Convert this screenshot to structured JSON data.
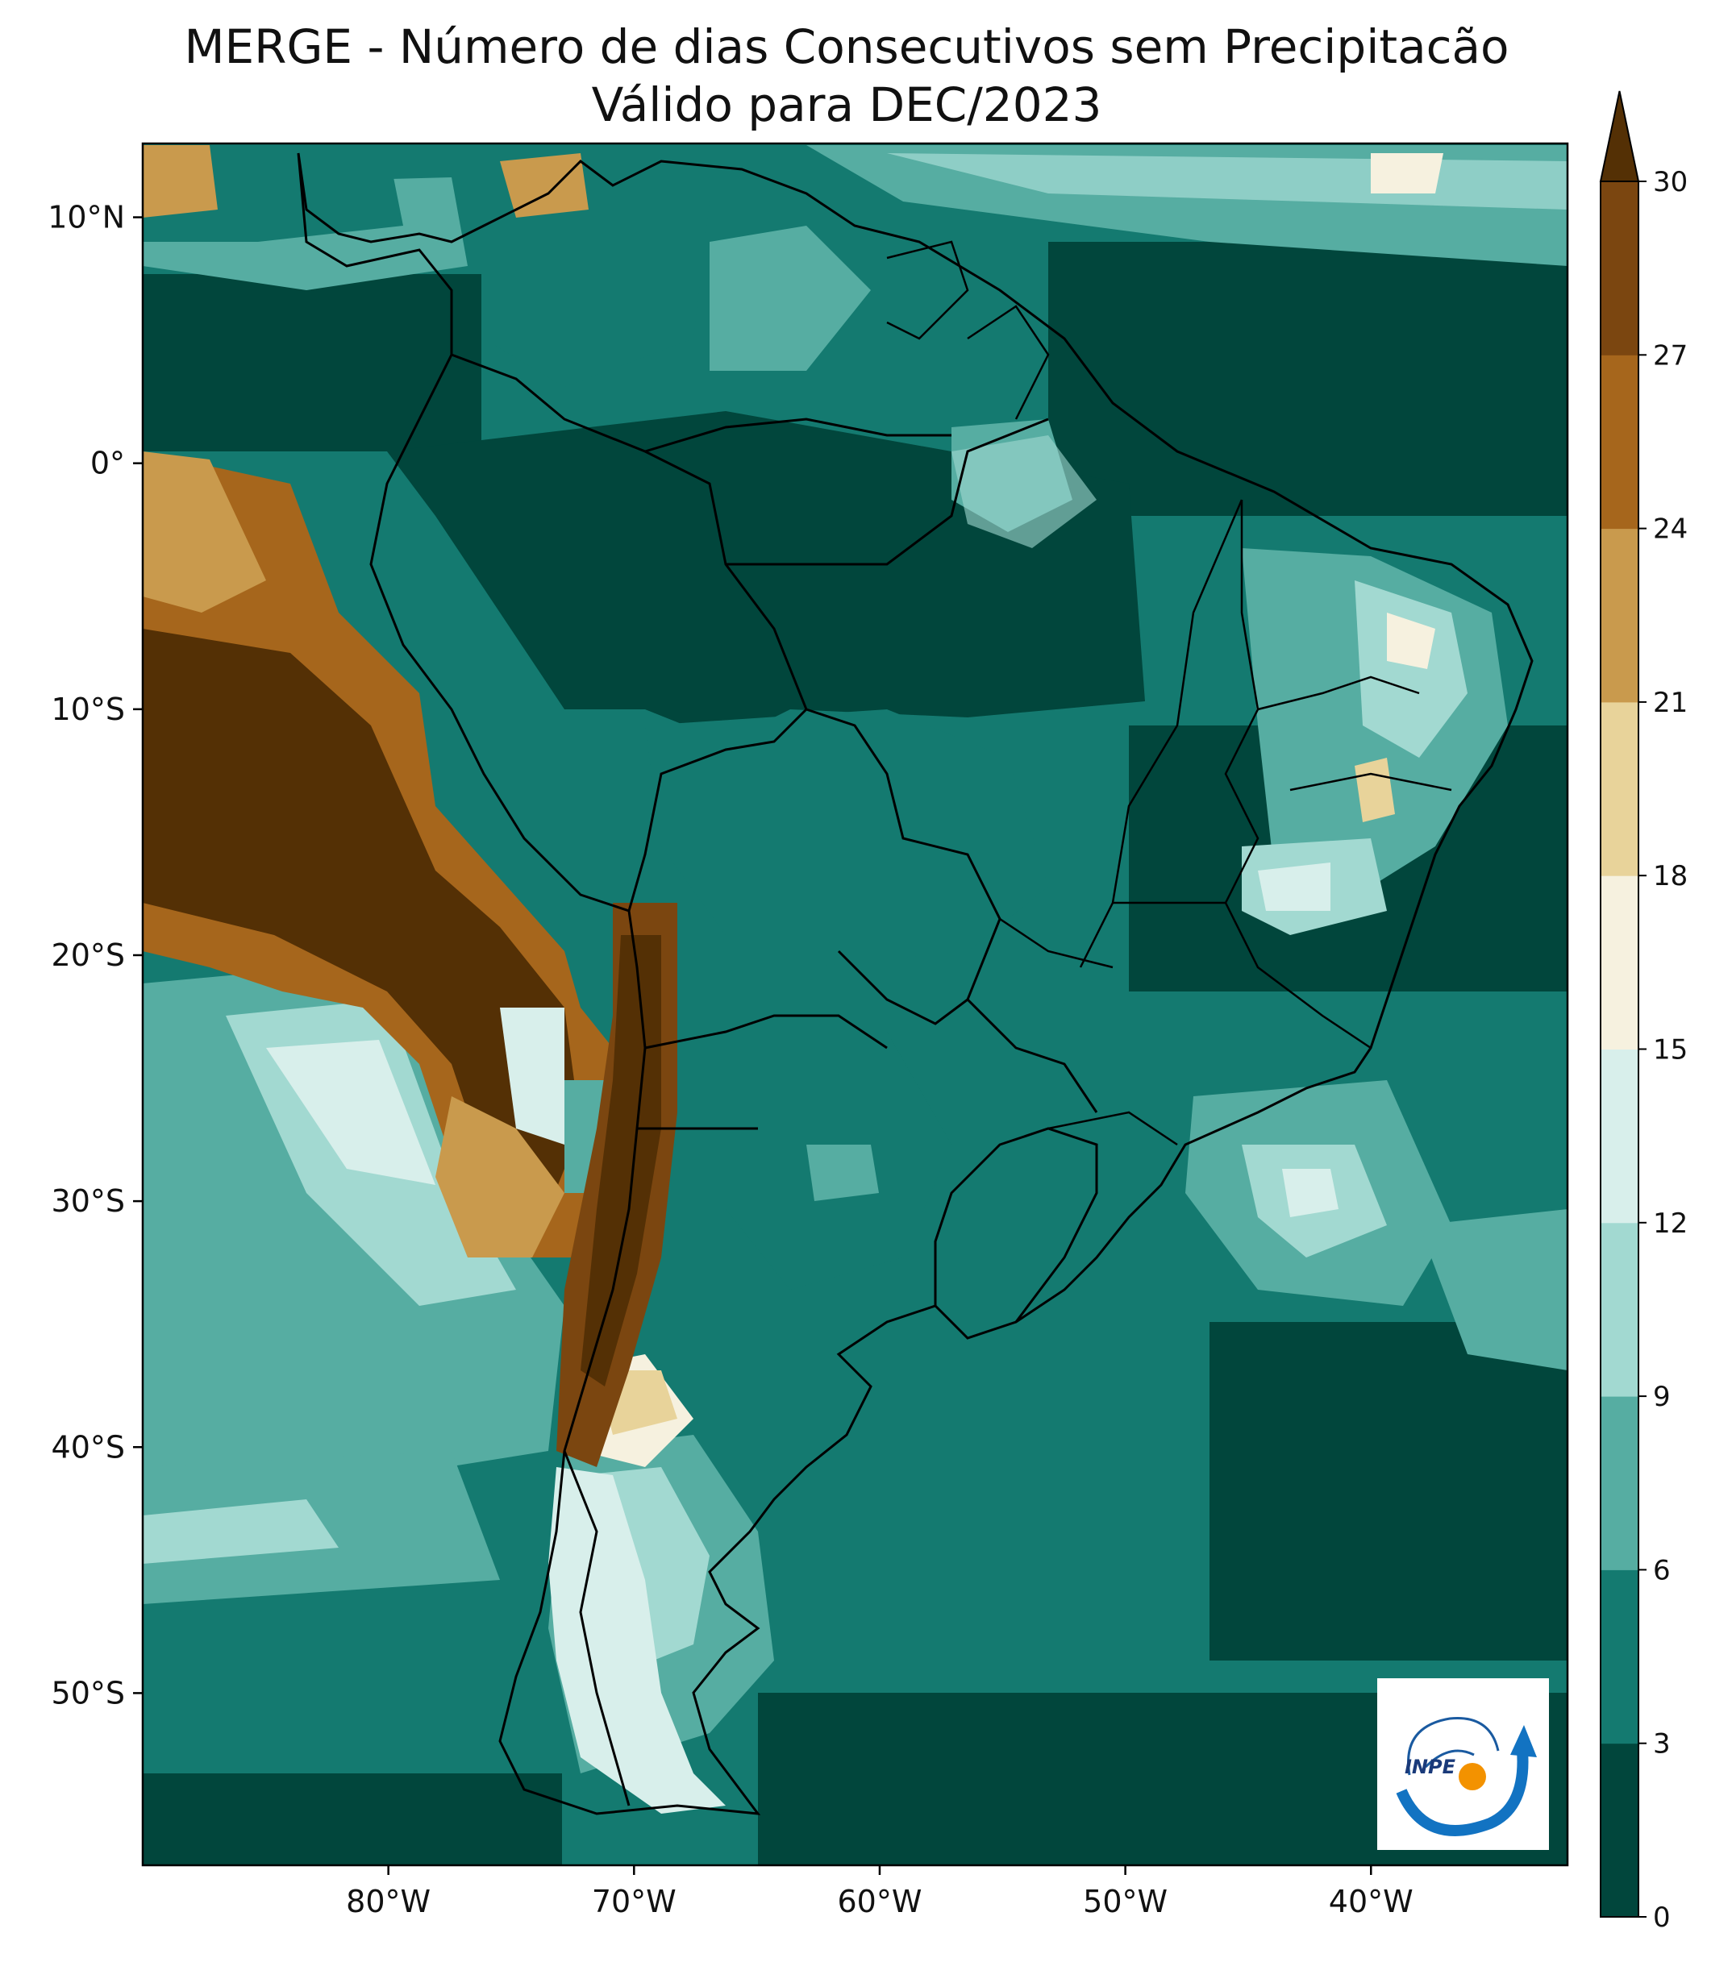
{
  "title": {
    "line1": "MERGE - Número de dias Consecutivos sem Precipitacão",
    "line2": "Válido para DEC/2023"
  },
  "map": {
    "lon_range": [
      -90,
      -32
    ],
    "lat_range": [
      -57,
      13
    ],
    "lon_ticks": [
      {
        "value": -80,
        "label": "80°W"
      },
      {
        "value": -70,
        "label": "70°W"
      },
      {
        "value": -60,
        "label": "60°W"
      },
      {
        "value": -50,
        "label": "50°W"
      },
      {
        "value": -40,
        "label": "40°W"
      }
    ],
    "lat_ticks": [
      {
        "value": 10,
        "label": "10°N"
      },
      {
        "value": 0,
        "label": "0°"
      },
      {
        "value": -10,
        "label": "10°S"
      },
      {
        "value": -20,
        "label": "20°S"
      },
      {
        "value": -30,
        "label": "30°S"
      },
      {
        "value": -40,
        "label": "40°S"
      },
      {
        "value": -50,
        "label": "50°S"
      }
    ]
  },
  "colorbar": {
    "levels": [
      {
        "min": 0,
        "max": 3,
        "color": "#01463c"
      },
      {
        "min": 3,
        "max": 6,
        "color": "#147a70"
      },
      {
        "min": 6,
        "max": 9,
        "color": "#56ada2"
      },
      {
        "min": 9,
        "max": 12,
        "color": "#a2d9d1"
      },
      {
        "min": 12,
        "max": 15,
        "color": "#d8efeb"
      },
      {
        "min": 15,
        "max": 18,
        "color": "#f6f1df"
      },
      {
        "min": 18,
        "max": 21,
        "color": "#e8d39a"
      },
      {
        "min": 21,
        "max": 24,
        "color": "#c99a4d"
      },
      {
        "min": 24,
        "max": 27,
        "color": "#a6661c"
      },
      {
        "min": 27,
        "max": 30,
        "color": "#7b4610"
      }
    ],
    "extend_color": "#543005",
    "tick_labels": [
      "0",
      "3",
      "6",
      "9",
      "12",
      "15",
      "18",
      "21",
      "24",
      "27",
      "30"
    ]
  },
  "logo": {
    "text": "INPE",
    "icon": "inpe-logo-icon"
  }
}
